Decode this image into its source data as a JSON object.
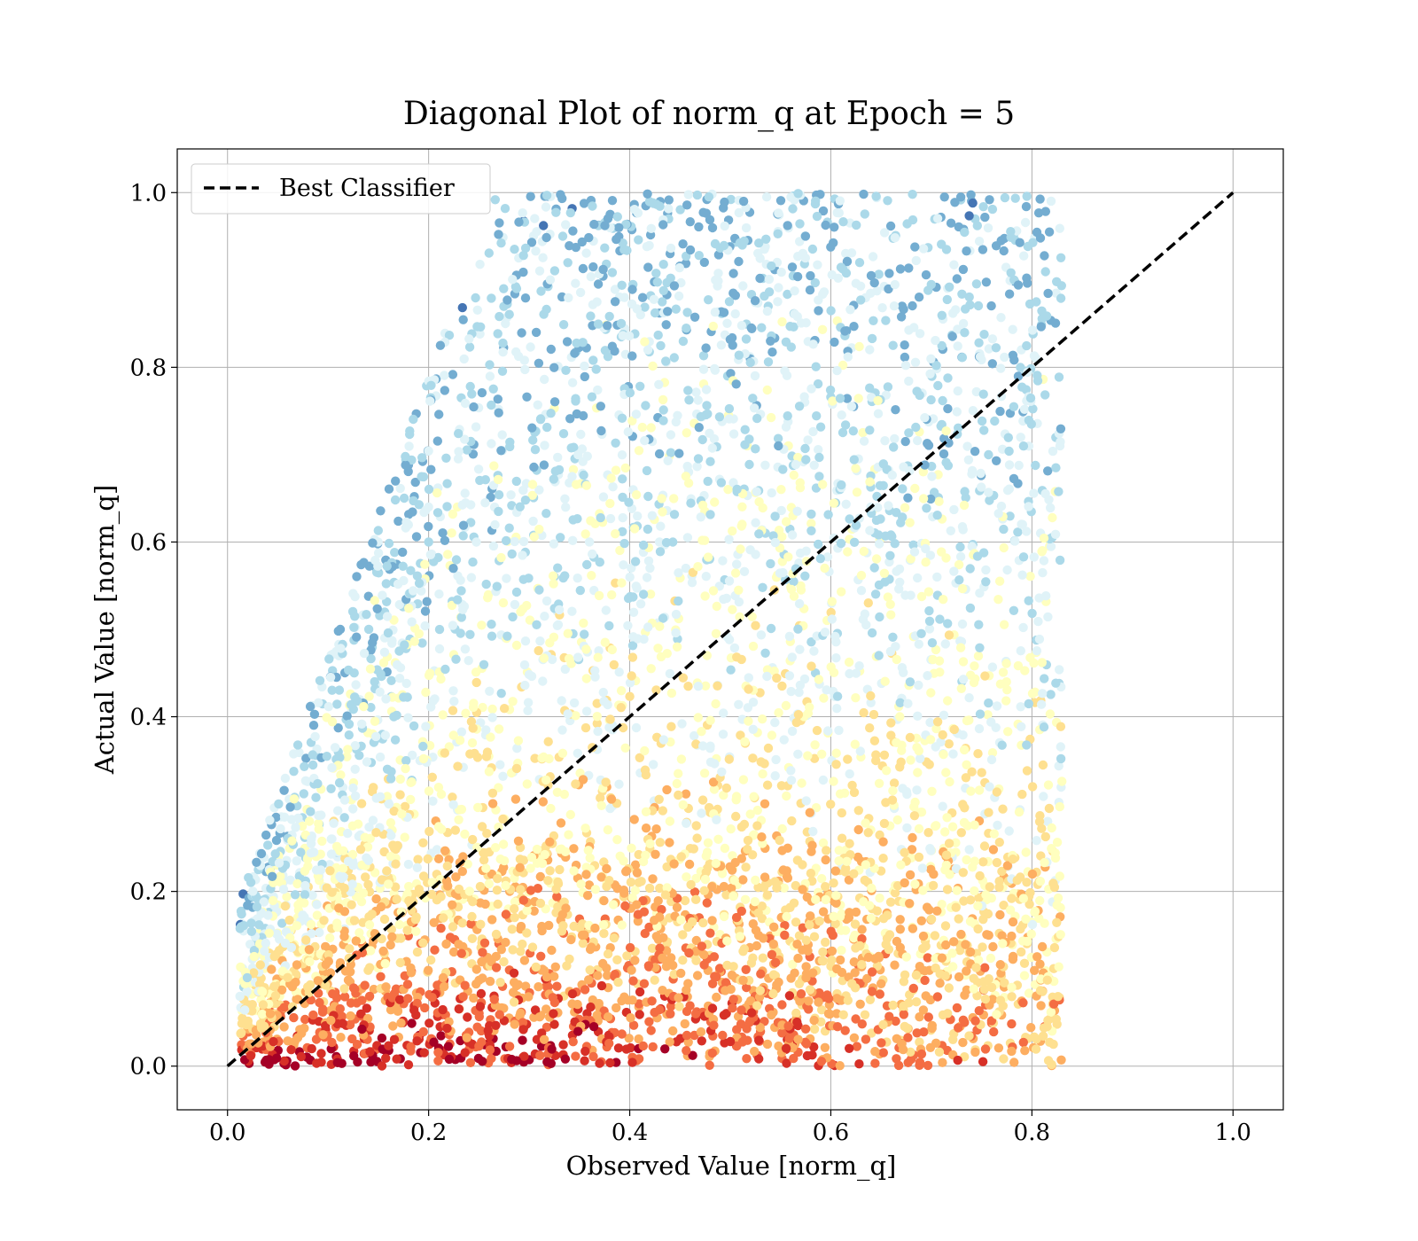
{
  "chart_data": {
    "type": "scatter",
    "title": "Diagonal Plot of norm_q at Epoch = 5",
    "xlabel": "Observed Value [norm_q]",
    "ylabel": "Actual Value [norm_q]",
    "xlim": [
      -0.05,
      1.05
    ],
    "ylim": [
      -0.05,
      1.05
    ],
    "xticks": [
      "0.0",
      "0.2",
      "0.4",
      "0.6",
      "0.8",
      "1.0"
    ],
    "yticks": [
      "0.0",
      "0.2",
      "0.4",
      "0.6",
      "0.8",
      "1.0"
    ],
    "grid": true,
    "legend": {
      "placement": "upper-left",
      "entries": [
        "Best Classifier"
      ]
    },
    "reference_line": {
      "name": "Best Classifier",
      "style": "dashed",
      "color": "#000000",
      "x": [
        0.0,
        1.0
      ],
      "y": [
        0.0,
        1.0
      ]
    },
    "scatter": {
      "x_range": [
        0.01,
        0.83
      ],
      "y_range": [
        0.0,
        1.0
      ],
      "colormap": "RdYlBu",
      "colormap_colors": [
        "#a50026",
        "#d73027",
        "#f46d43",
        "#fdae61",
        "#fee090",
        "#ffffbf",
        "#e0f3f8",
        "#abd9e9",
        "#74add1",
        "#4575b4",
        "#313695"
      ],
      "density_note": ""
    }
  }
}
